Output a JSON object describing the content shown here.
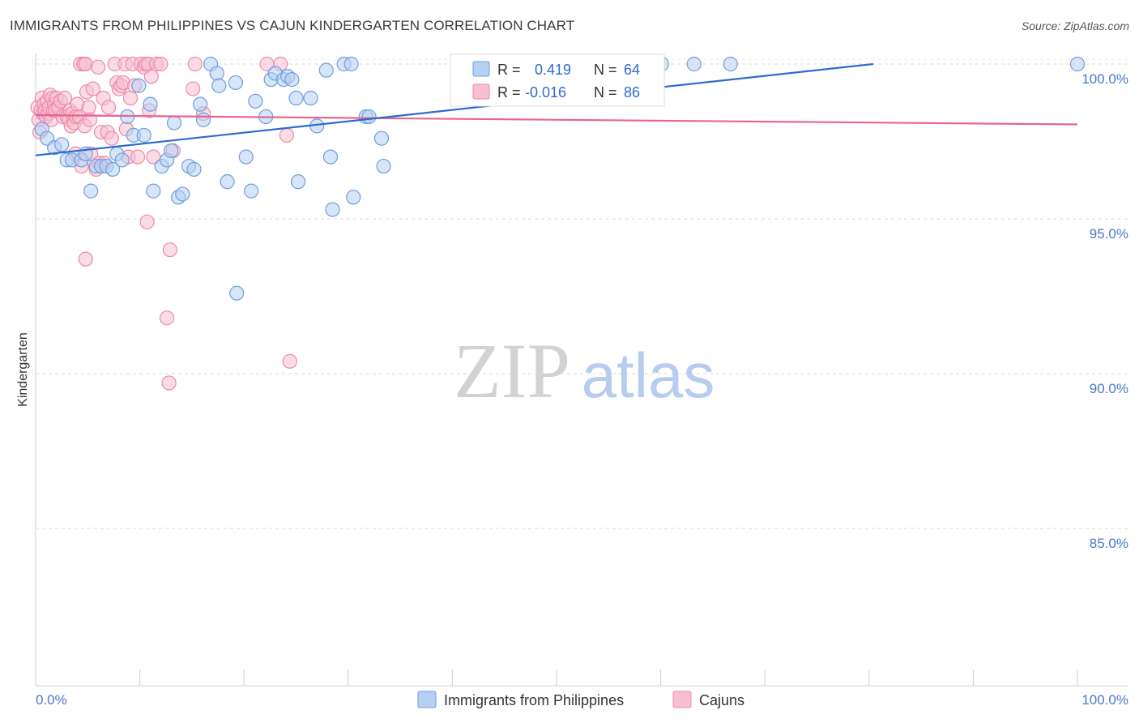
{
  "title": "IMMIGRANTS FROM PHILIPPINES VS CAJUN KINDERGARTEN CORRELATION CHART",
  "source": "Source: ZipAtlas.com",
  "watermark": {
    "zip": "ZIP",
    "atlas": "atlas"
  },
  "legend": {
    "r_label": "R =",
    "n_label": "N =",
    "series1": {
      "r": "0.419",
      "n": "64"
    },
    "series2": {
      "r": "-0.016",
      "n": "86"
    }
  },
  "colors": {
    "blue_fill": "#b6cff3",
    "blue_stroke": "#6f9ee0",
    "blue_line": "#2e6bd0",
    "pink_fill": "#f7bfd0",
    "pink_stroke": "#ec8aab",
    "pink_line": "#e8638e",
    "grid": "#d8d8d8",
    "axis_label": "#4a78c8"
  },
  "chart_data": {
    "type": "scatter",
    "title": "IMMIGRANTS FROM PHILIPPINES VS CAJUN KINDERGARTEN CORRELATION CHART",
    "xlabel": "",
    "ylabel": "Kindergarten",
    "xlim": [
      0,
      100
    ],
    "ylim": [
      80.6,
      100.5
    ],
    "x_tick_labels": [
      "0.0%",
      "100.0%"
    ],
    "y_ticks": [
      100,
      95,
      90,
      85
    ],
    "y_tick_labels": [
      "100.0%",
      "95.0%",
      "90.0%",
      "85.0%"
    ],
    "series": [
      {
        "name": "Immigrants from Philippines",
        "r": 0.419,
        "n": 64,
        "trend": {
          "x0": 0,
          "y0": 97.05,
          "x1": 80.4,
          "y1": 100.0
        },
        "points": [
          [
            0.6,
            97.9
          ],
          [
            1.1,
            97.6
          ],
          [
            1.8,
            97.3
          ],
          [
            2.5,
            97.4
          ],
          [
            3.0,
            96.9
          ],
          [
            3.5,
            96.9
          ],
          [
            4.4,
            96.9
          ],
          [
            4.8,
            97.1
          ],
          [
            5.3,
            95.9
          ],
          [
            5.8,
            96.7
          ],
          [
            6.3,
            96.7
          ],
          [
            6.8,
            96.7
          ],
          [
            7.4,
            96.6
          ],
          [
            7.8,
            97.1
          ],
          [
            8.3,
            96.9
          ],
          [
            8.8,
            98.3
          ],
          [
            9.4,
            97.7
          ],
          [
            10.4,
            97.7
          ],
          [
            11.0,
            98.7
          ],
          [
            11.3,
            95.9
          ],
          [
            12.1,
            96.7
          ],
          [
            12.6,
            96.9
          ],
          [
            13.0,
            97.2
          ],
          [
            13.3,
            98.1
          ],
          [
            13.7,
            95.7
          ],
          [
            14.1,
            95.8
          ],
          [
            14.7,
            96.7
          ],
          [
            15.2,
            96.6
          ],
          [
            15.8,
            98.7
          ],
          [
            16.1,
            98.2
          ],
          [
            16.8,
            100.0
          ],
          [
            17.4,
            99.7
          ],
          [
            17.6,
            99.3
          ],
          [
            19.2,
            99.4
          ],
          [
            18.4,
            96.2
          ],
          [
            19.3,
            92.6
          ],
          [
            20.2,
            97.0
          ],
          [
            20.7,
            95.9
          ],
          [
            21.1,
            98.8
          ],
          [
            22.1,
            98.3
          ],
          [
            22.6,
            99.5
          ],
          [
            23.0,
            99.7
          ],
          [
            23.8,
            99.5
          ],
          [
            24.2,
            99.6
          ],
          [
            24.6,
            99.5
          ],
          [
            25.0,
            98.9
          ],
          [
            25.2,
            96.2
          ],
          [
            26.4,
            98.9
          ],
          [
            27.0,
            98.0
          ],
          [
            27.9,
            99.8
          ],
          [
            28.3,
            97.0
          ],
          [
            28.5,
            95.3
          ],
          [
            29.6,
            100.0
          ],
          [
            30.3,
            100.0
          ],
          [
            30.5,
            95.7
          ],
          [
            31.7,
            98.3
          ],
          [
            32.0,
            98.3
          ],
          [
            33.2,
            97.6
          ],
          [
            33.4,
            96.7
          ],
          [
            60.1,
            100.0
          ],
          [
            63.2,
            100.0
          ],
          [
            66.7,
            100.0
          ],
          [
            100.0,
            100.0
          ],
          [
            9.9,
            99.3
          ]
        ]
      },
      {
        "name": "Cajuns",
        "r": -0.016,
        "n": 86,
        "trend": {
          "x0": 0,
          "y0": 98.35,
          "x1": 100,
          "y1": 98.05
        },
        "points": [
          [
            0.2,
            98.6
          ],
          [
            0.3,
            98.2
          ],
          [
            0.4,
            97.8
          ],
          [
            0.5,
            98.5
          ],
          [
            0.6,
            98.9
          ],
          [
            0.7,
            98.4
          ],
          [
            0.8,
            98.7
          ],
          [
            0.9,
            98.5
          ],
          [
            1.0,
            98.3
          ],
          [
            1.1,
            98.8
          ],
          [
            1.2,
            98.4
          ],
          [
            1.3,
            98.6
          ],
          [
            1.4,
            99.0
          ],
          [
            1.5,
            98.2
          ],
          [
            1.6,
            98.9
          ],
          [
            1.7,
            98.5
          ],
          [
            1.8,
            98.7
          ],
          [
            1.9,
            98.5
          ],
          [
            2.0,
            98.9
          ],
          [
            2.2,
            98.6
          ],
          [
            2.4,
            98.8
          ],
          [
            2.6,
            98.3
          ],
          [
            2.8,
            98.9
          ],
          [
            3.0,
            98.3
          ],
          [
            3.2,
            98.2
          ],
          [
            3.3,
            98.5
          ],
          [
            3.4,
            98.0
          ],
          [
            3.5,
            98.4
          ],
          [
            3.7,
            98.1
          ],
          [
            3.8,
            97.1
          ],
          [
            3.9,
            98.3
          ],
          [
            4.0,
            98.7
          ],
          [
            4.2,
            98.3
          ],
          [
            4.3,
            100.0
          ],
          [
            4.4,
            96.7
          ],
          [
            4.6,
            100.0
          ],
          [
            4.7,
            98.0
          ],
          [
            4.8,
            100.0
          ],
          [
            4.9,
            99.1
          ],
          [
            5.1,
            98.6
          ],
          [
            5.2,
            98.2
          ],
          [
            5.3,
            97.1
          ],
          [
            5.5,
            99.2
          ],
          [
            5.8,
            96.6
          ],
          [
            6.0,
            99.9
          ],
          [
            6.1,
            96.8
          ],
          [
            6.3,
            97.8
          ],
          [
            6.5,
            98.9
          ],
          [
            6.6,
            96.8
          ],
          [
            6.9,
            97.8
          ],
          [
            7.0,
            98.6
          ],
          [
            7.3,
            97.6
          ],
          [
            7.6,
            100.0
          ],
          [
            7.8,
            99.4
          ],
          [
            8.0,
            99.2
          ],
          [
            8.2,
            99.3
          ],
          [
            8.4,
            99.4
          ],
          [
            8.6,
            100.0
          ],
          [
            8.7,
            97.9
          ],
          [
            8.9,
            97.0
          ],
          [
            9.1,
            98.9
          ],
          [
            9.3,
            100.0
          ],
          [
            9.5,
            99.3
          ],
          [
            9.8,
            97.0
          ],
          [
            10.1,
            100.0
          ],
          [
            10.4,
            99.9
          ],
          [
            10.6,
            100.0
          ],
          [
            10.8,
            100.0
          ],
          [
            10.9,
            98.5
          ],
          [
            11.1,
            99.6
          ],
          [
            11.3,
            97.0
          ],
          [
            11.6,
            100.0
          ],
          [
            12.0,
            100.0
          ],
          [
            10.7,
            94.9
          ],
          [
            4.8,
            93.7
          ],
          [
            12.6,
            91.8
          ],
          [
            12.8,
            89.7
          ],
          [
            12.9,
            94.0
          ],
          [
            13.2,
            97.2
          ],
          [
            15.1,
            99.2
          ],
          [
            15.3,
            100.0
          ],
          [
            16.1,
            98.4
          ],
          [
            22.2,
            100.0
          ],
          [
            23.5,
            100.0
          ],
          [
            24.1,
            97.7
          ],
          [
            24.4,
            90.4
          ]
        ]
      }
    ]
  },
  "bottom_legend": [
    "Immigrants from Philippines",
    "Cajuns"
  ]
}
